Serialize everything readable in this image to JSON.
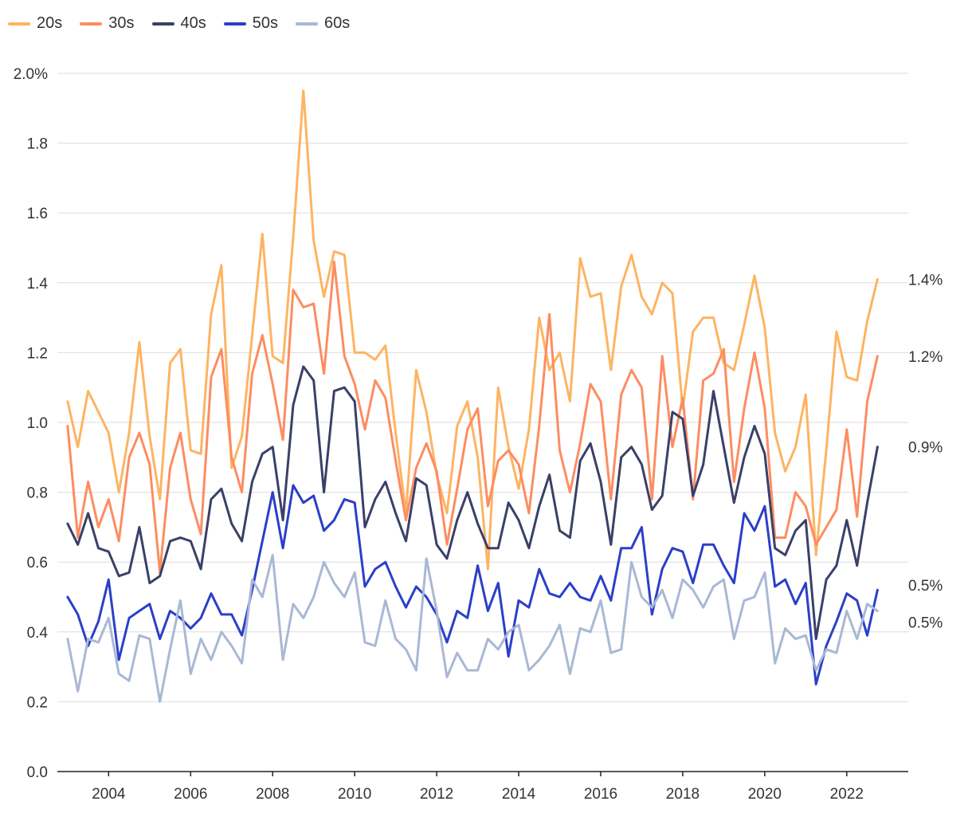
{
  "chart_data": {
    "type": "line",
    "title": "",
    "xlabel": "",
    "ylabel": "",
    "ylim": [
      0,
      2.0
    ],
    "xlim": [
      2002.75,
      2023.5
    ],
    "y_ticks": [
      0.0,
      0.2,
      0.4,
      0.6,
      0.8,
      1.0,
      1.2,
      1.4,
      1.6,
      1.8,
      2.0
    ],
    "y_tick_labels": [
      "0.0",
      "0.2",
      "0.4",
      "0.6",
      "0.8",
      "1.0",
      "1.2",
      "1.4",
      "1.6",
      "1.8",
      "2.0%"
    ],
    "x_ticks": [
      2004,
      2006,
      2008,
      2010,
      2012,
      2014,
      2016,
      2018,
      2020,
      2022
    ],
    "x_tick_labels": [
      "2004",
      "2006",
      "2008",
      "2010",
      "2012",
      "2014",
      "2016",
      "2018",
      "2020",
      "2022"
    ],
    "grid": true,
    "legend_position": "top-left",
    "x_start": 2003.0,
    "x_step": 0.25,
    "series": [
      {
        "name": "20s",
        "color": "#fdb462",
        "end_label": "1.4%",
        "values": [
          1.06,
          0.93,
          1.09,
          1.03,
          0.97,
          0.8,
          0.97,
          1.23,
          0.96,
          0.78,
          1.17,
          1.21,
          0.92,
          0.91,
          1.31,
          1.45,
          0.87,
          0.96,
          1.25,
          1.54,
          1.19,
          1.17,
          1.53,
          1.95,
          1.52,
          1.36,
          1.49,
          1.48,
          1.2,
          1.2,
          1.18,
          1.22,
          0.97,
          0.74,
          1.15,
          1.03,
          0.85,
          0.74,
          0.99,
          1.06,
          0.9,
          0.58,
          1.1,
          0.93,
          0.81,
          0.98,
          1.3,
          1.15,
          1.2,
          1.06,
          1.47,
          1.36,
          1.37,
          1.15,
          1.39,
          1.48,
          1.36,
          1.31,
          1.4,
          1.37,
          1.04,
          1.26,
          1.3,
          1.3,
          1.17,
          1.15,
          1.28,
          1.42,
          1.27,
          0.97,
          0.86,
          0.93,
          1.08,
          0.62,
          0.92,
          1.26,
          1.13,
          1.12,
          1.29,
          1.41
        ]
      },
      {
        "name": "30s",
        "color": "#fc8d62",
        "end_label": "1.2%",
        "values": [
          0.99,
          0.67,
          0.83,
          0.7,
          0.78,
          0.66,
          0.9,
          0.97,
          0.88,
          0.57,
          0.87,
          0.97,
          0.78,
          0.68,
          1.13,
          1.21,
          0.9,
          0.8,
          1.14,
          1.25,
          1.11,
          0.95,
          1.38,
          1.33,
          1.34,
          1.14,
          1.46,
          1.19,
          1.11,
          0.98,
          1.12,
          1.07,
          0.89,
          0.72,
          0.87,
          0.94,
          0.86,
          0.65,
          0.81,
          0.98,
          1.04,
          0.76,
          0.89,
          0.92,
          0.88,
          0.74,
          0.99,
          1.31,
          0.92,
          0.8,
          0.94,
          1.11,
          1.06,
          0.78,
          1.08,
          1.15,
          1.1,
          0.78,
          1.19,
          0.93,
          1.07,
          0.78,
          1.12,
          1.14,
          1.21,
          0.83,
          1.04,
          1.2,
          1.04,
          0.67,
          0.67,
          0.8,
          0.76,
          0.65,
          0.7,
          0.75,
          0.98,
          0.73,
          1.06,
          1.19
        ]
      },
      {
        "name": "40s",
        "color": "#3a4068",
        "end_label": "0.9%",
        "values": [
          0.71,
          0.65,
          0.74,
          0.64,
          0.63,
          0.56,
          0.57,
          0.7,
          0.54,
          0.56,
          0.66,
          0.67,
          0.66,
          0.58,
          0.78,
          0.81,
          0.71,
          0.66,
          0.83,
          0.91,
          0.93,
          0.72,
          1.05,
          1.16,
          1.12,
          0.8,
          1.09,
          1.1,
          1.06,
          0.7,
          0.78,
          0.83,
          0.74,
          0.66,
          0.84,
          0.82,
          0.65,
          0.61,
          0.72,
          0.8,
          0.71,
          0.64,
          0.64,
          0.77,
          0.72,
          0.64,
          0.76,
          0.85,
          0.69,
          0.67,
          0.89,
          0.94,
          0.83,
          0.65,
          0.9,
          0.93,
          0.88,
          0.75,
          0.79,
          1.03,
          1.01,
          0.79,
          0.88,
          1.09,
          0.93,
          0.77,
          0.9,
          0.99,
          0.91,
          0.64,
          0.62,
          0.69,
          0.72,
          0.38,
          0.55,
          0.59,
          0.72,
          0.59,
          0.77,
          0.93
        ]
      },
      {
        "name": "50s",
        "color": "#2b3fc8",
        "end_label": "0.5%",
        "values": [
          0.5,
          0.45,
          0.36,
          0.43,
          0.55,
          0.32,
          0.44,
          0.46,
          0.48,
          0.38,
          0.46,
          0.44,
          0.41,
          0.44,
          0.51,
          0.45,
          0.45,
          0.39,
          0.52,
          0.66,
          0.8,
          0.64,
          0.82,
          0.77,
          0.79,
          0.69,
          0.72,
          0.78,
          0.77,
          0.53,
          0.58,
          0.6,
          0.53,
          0.47,
          0.53,
          0.5,
          0.45,
          0.37,
          0.46,
          0.44,
          0.59,
          0.46,
          0.54,
          0.33,
          0.49,
          0.47,
          0.58,
          0.51,
          0.5,
          0.54,
          0.5,
          0.49,
          0.56,
          0.49,
          0.64,
          0.64,
          0.7,
          0.45,
          0.58,
          0.64,
          0.63,
          0.54,
          0.65,
          0.65,
          0.59,
          0.54,
          0.74,
          0.69,
          0.76,
          0.53,
          0.55,
          0.48,
          0.54,
          0.25,
          0.36,
          0.43,
          0.51,
          0.49,
          0.39,
          0.52
        ]
      },
      {
        "name": "60s",
        "color": "#a9b8d4",
        "end_label": "0.5%",
        "values": [
          0.38,
          0.23,
          0.38,
          0.37,
          0.44,
          0.28,
          0.26,
          0.39,
          0.38,
          0.2,
          0.35,
          0.49,
          0.28,
          0.38,
          0.32,
          0.4,
          0.36,
          0.31,
          0.55,
          0.5,
          0.62,
          0.32,
          0.48,
          0.44,
          0.5,
          0.6,
          0.54,
          0.5,
          0.57,
          0.37,
          0.36,
          0.49,
          0.38,
          0.35,
          0.29,
          0.61,
          0.46,
          0.27,
          0.34,
          0.29,
          0.29,
          0.38,
          0.35,
          0.4,
          0.42,
          0.29,
          0.32,
          0.36,
          0.42,
          0.28,
          0.41,
          0.4,
          0.49,
          0.34,
          0.35,
          0.6,
          0.5,
          0.47,
          0.52,
          0.44,
          0.55,
          0.52,
          0.47,
          0.53,
          0.55,
          0.38,
          0.49,
          0.5,
          0.57,
          0.31,
          0.41,
          0.38,
          0.39,
          0.29,
          0.35,
          0.34,
          0.46,
          0.38,
          0.48,
          0.46
        ]
      }
    ]
  }
}
